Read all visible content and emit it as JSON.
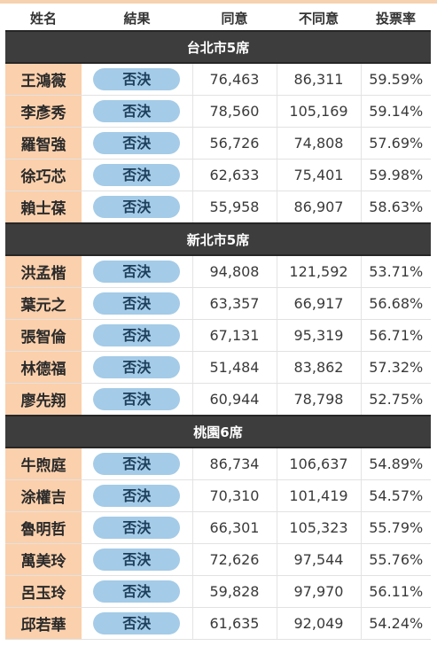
{
  "headers": [
    "姓名",
    "結果",
    "同意",
    "不同意",
    "投票率"
  ],
  "sections": [
    {
      "title": "台北市5席",
      "rows": [
        {
          "name": "王鴻薇",
          "result": "否決",
          "agree": "76,463",
          "disagree": "86,311",
          "rate": "59.59%"
        },
        {
          "name": "李彥秀",
          "result": "否決",
          "agree": "78,560",
          "disagree": "105,169",
          "rate": "59.14%"
        },
        {
          "name": "羅智強",
          "result": "否決",
          "agree": "56,726",
          "disagree": "74,808",
          "rate": "57.69%"
        },
        {
          "name": "徐巧芯",
          "result": "否決",
          "agree": "62,633",
          "disagree": "75,401",
          "rate": "59.98%"
        },
        {
          "name": "賴士葆",
          "result": "否決",
          "agree": "55,958",
          "disagree": "86,907",
          "rate": "58.63%"
        }
      ]
    },
    {
      "title": "新北市5席",
      "rows": [
        {
          "name": "洪孟楷",
          "result": "否決",
          "agree": "94,808",
          "disagree": "121,592",
          "rate": "53.71%"
        },
        {
          "name": "葉元之",
          "result": "否決",
          "agree": "63,357",
          "disagree": "66,917",
          "rate": "56.68%"
        },
        {
          "name": "張智倫",
          "result": "否決",
          "agree": "67,131",
          "disagree": "95,319",
          "rate": "56.71%"
        },
        {
          "name": "林德福",
          "result": "否決",
          "agree": "51,484",
          "disagree": "83,862",
          "rate": "57.32%"
        },
        {
          "name": "廖先翔",
          "result": "否決",
          "agree": "60,944",
          "disagree": "78,798",
          "rate": "52.75%"
        }
      ]
    },
    {
      "title": "桃園6席",
      "rows": [
        {
          "name": "牛煦庭",
          "result": "否決",
          "agree": "86,734",
          "disagree": "106,637",
          "rate": "54.89%"
        },
        {
          "name": "涂權吉",
          "result": "否決",
          "agree": "70,310",
          "disagree": "101,419",
          "rate": "54.57%"
        },
        {
          "name": "魯明哲",
          "result": "否決",
          "agree": "66,301",
          "disagree": "105,323",
          "rate": "55.79%"
        },
        {
          "name": "萬美玲",
          "result": "否決",
          "agree": "72,626",
          "disagree": "97,544",
          "rate": "55.76%"
        },
        {
          "name": "呂玉玲",
          "result": "否決",
          "agree": "59,828",
          "disagree": "97,970",
          "rate": "56.11%"
        },
        {
          "name": "邱若華",
          "result": "否決",
          "agree": "61,635",
          "disagree": "92,049",
          "rate": "54.24%"
        }
      ]
    }
  ]
}
